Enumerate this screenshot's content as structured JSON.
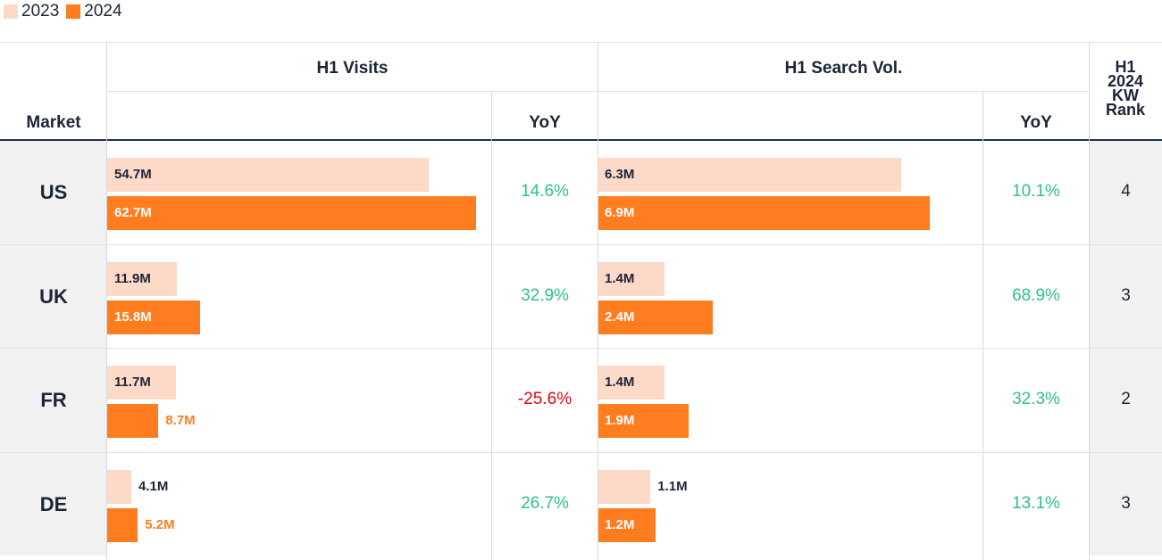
{
  "legend": [
    {
      "label": "2023",
      "color": "#fdd9c7"
    },
    {
      "label": "2024",
      "color": "#ff7d1f"
    }
  ],
  "headers": {
    "market": "Market",
    "visits": "H1 Visits",
    "search": "H1 Search Vol.",
    "yoy_visits": "YoY",
    "yoy_search": "YoY",
    "kw_rank": [
      "H1",
      "2024",
      "KW",
      "Rank"
    ]
  },
  "colors": {
    "y2023": "#fdd9c7",
    "y2024": "#ff7d1f",
    "positive": "#2ec28a",
    "negative": "#e30613",
    "text": "#1c2536"
  },
  "chart_data": {
    "type": "bar",
    "categories": [
      "US",
      "UK",
      "FR",
      "DE"
    ],
    "series_names": [
      "2023",
      "2024"
    ],
    "visits": {
      "title": "H1 Visits",
      "unit": "M",
      "values_2023": [
        54.7,
        11.9,
        11.7,
        4.1
      ],
      "values_2024": [
        62.7,
        15.8,
        8.7,
        5.2
      ],
      "labels_2023": [
        "54.7M",
        "11.9M",
        "11.7M",
        "4.1M"
      ],
      "labels_2024": [
        "62.7M",
        "15.8M",
        "8.7M",
        "5.2M"
      ],
      "yoy": [
        "14.6%",
        "32.9%",
        "-25.6%",
        "26.7%"
      ]
    },
    "search": {
      "title": "H1 Search Vol.",
      "unit": "M",
      "values_2023": [
        6.3,
        1.4,
        1.4,
        1.1
      ],
      "values_2024": [
        6.9,
        2.4,
        1.9,
        1.2
      ],
      "labels_2023": [
        "6.3M",
        "1.4M",
        "1.4M",
        "1.1M"
      ],
      "labels_2024": [
        "6.9M",
        "2.4M",
        "1.9M",
        "1.2M"
      ],
      "yoy": [
        "10.1%",
        "68.9%",
        "32.3%",
        "13.1%"
      ]
    },
    "kw_rank": [
      4,
      3,
      2,
      3
    ]
  }
}
